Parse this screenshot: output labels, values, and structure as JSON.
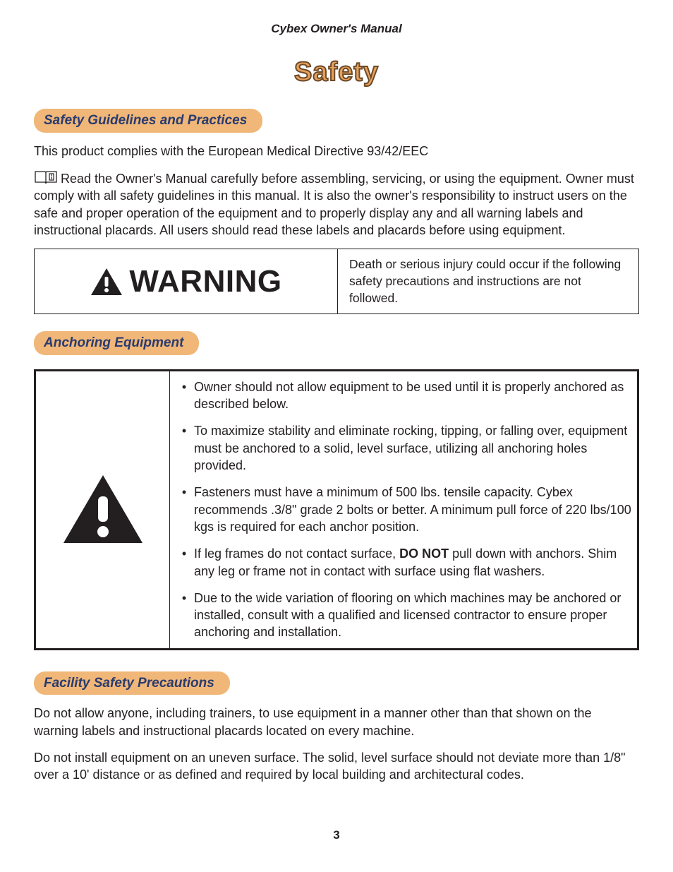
{
  "header": "Cybex Owner's Manual",
  "chapter": "Safety",
  "page_number": "3",
  "colors": {
    "pill_bg": "#f0b778",
    "pill_text": "#2a3b6f",
    "chapter_fill": "#e8a05a",
    "chapter_stroke": "#6b4a2a",
    "body_text": "#231f20"
  },
  "sections": {
    "guidelines": {
      "title": "Safety Guidelines and Practices",
      "compliance": "This product complies with the European Medical Directive 93/42/EEC",
      "read_manual": "Read the Owner's Manual carefully before assembling, servicing, or using the equipment. Owner must comply with all safety guidelines in this manual. It is also the owner's responsibility to instruct users on the safe and proper operation of the equipment and to properly display any and all warning labels and instructional placards. All users should read these labels and placards before using equipment."
    },
    "warning": {
      "label": "WARNING",
      "text": "Death or serious injury could occur if the following safety precautions and instructions are not followed."
    },
    "anchoring": {
      "title": "Anchoring Equipment",
      "bullets": [
        "Owner should not allow equipment to be used until it is properly anchored as described below.",
        "To maximize stability and eliminate rocking, tipping, or falling over, equipment must be anchored to a solid, level surface, utilizing all anchoring holes provided.",
        "Fasteners must have a minimum of 500 lbs. tensile capacity. Cybex recommends .3/8\" grade 2 bolts or better. A minimum pull force of 220 lbs/100 kgs is required for each anchor position.",
        "If leg frames do not contact surface, <strong>DO NOT</strong> pull down with anchors. Shim any leg or frame not in contact with surface using flat washers.",
        "Due to the wide variation of flooring on which machines may be anchored or installed, consult with a qualified and licensed contractor to ensure proper anchoring and installation."
      ]
    },
    "facility": {
      "title": "Facility Safety Precautions",
      "p1": "Do not allow anyone, including trainers, to use equipment in a manner other than that shown on the warning labels and instructional placards located on every machine.",
      "p2": "Do not install equipment on an uneven surface. The solid, level surface should not deviate more than 1/8\" over a 10' distance or as defined and required by local building and architectural codes."
    }
  }
}
